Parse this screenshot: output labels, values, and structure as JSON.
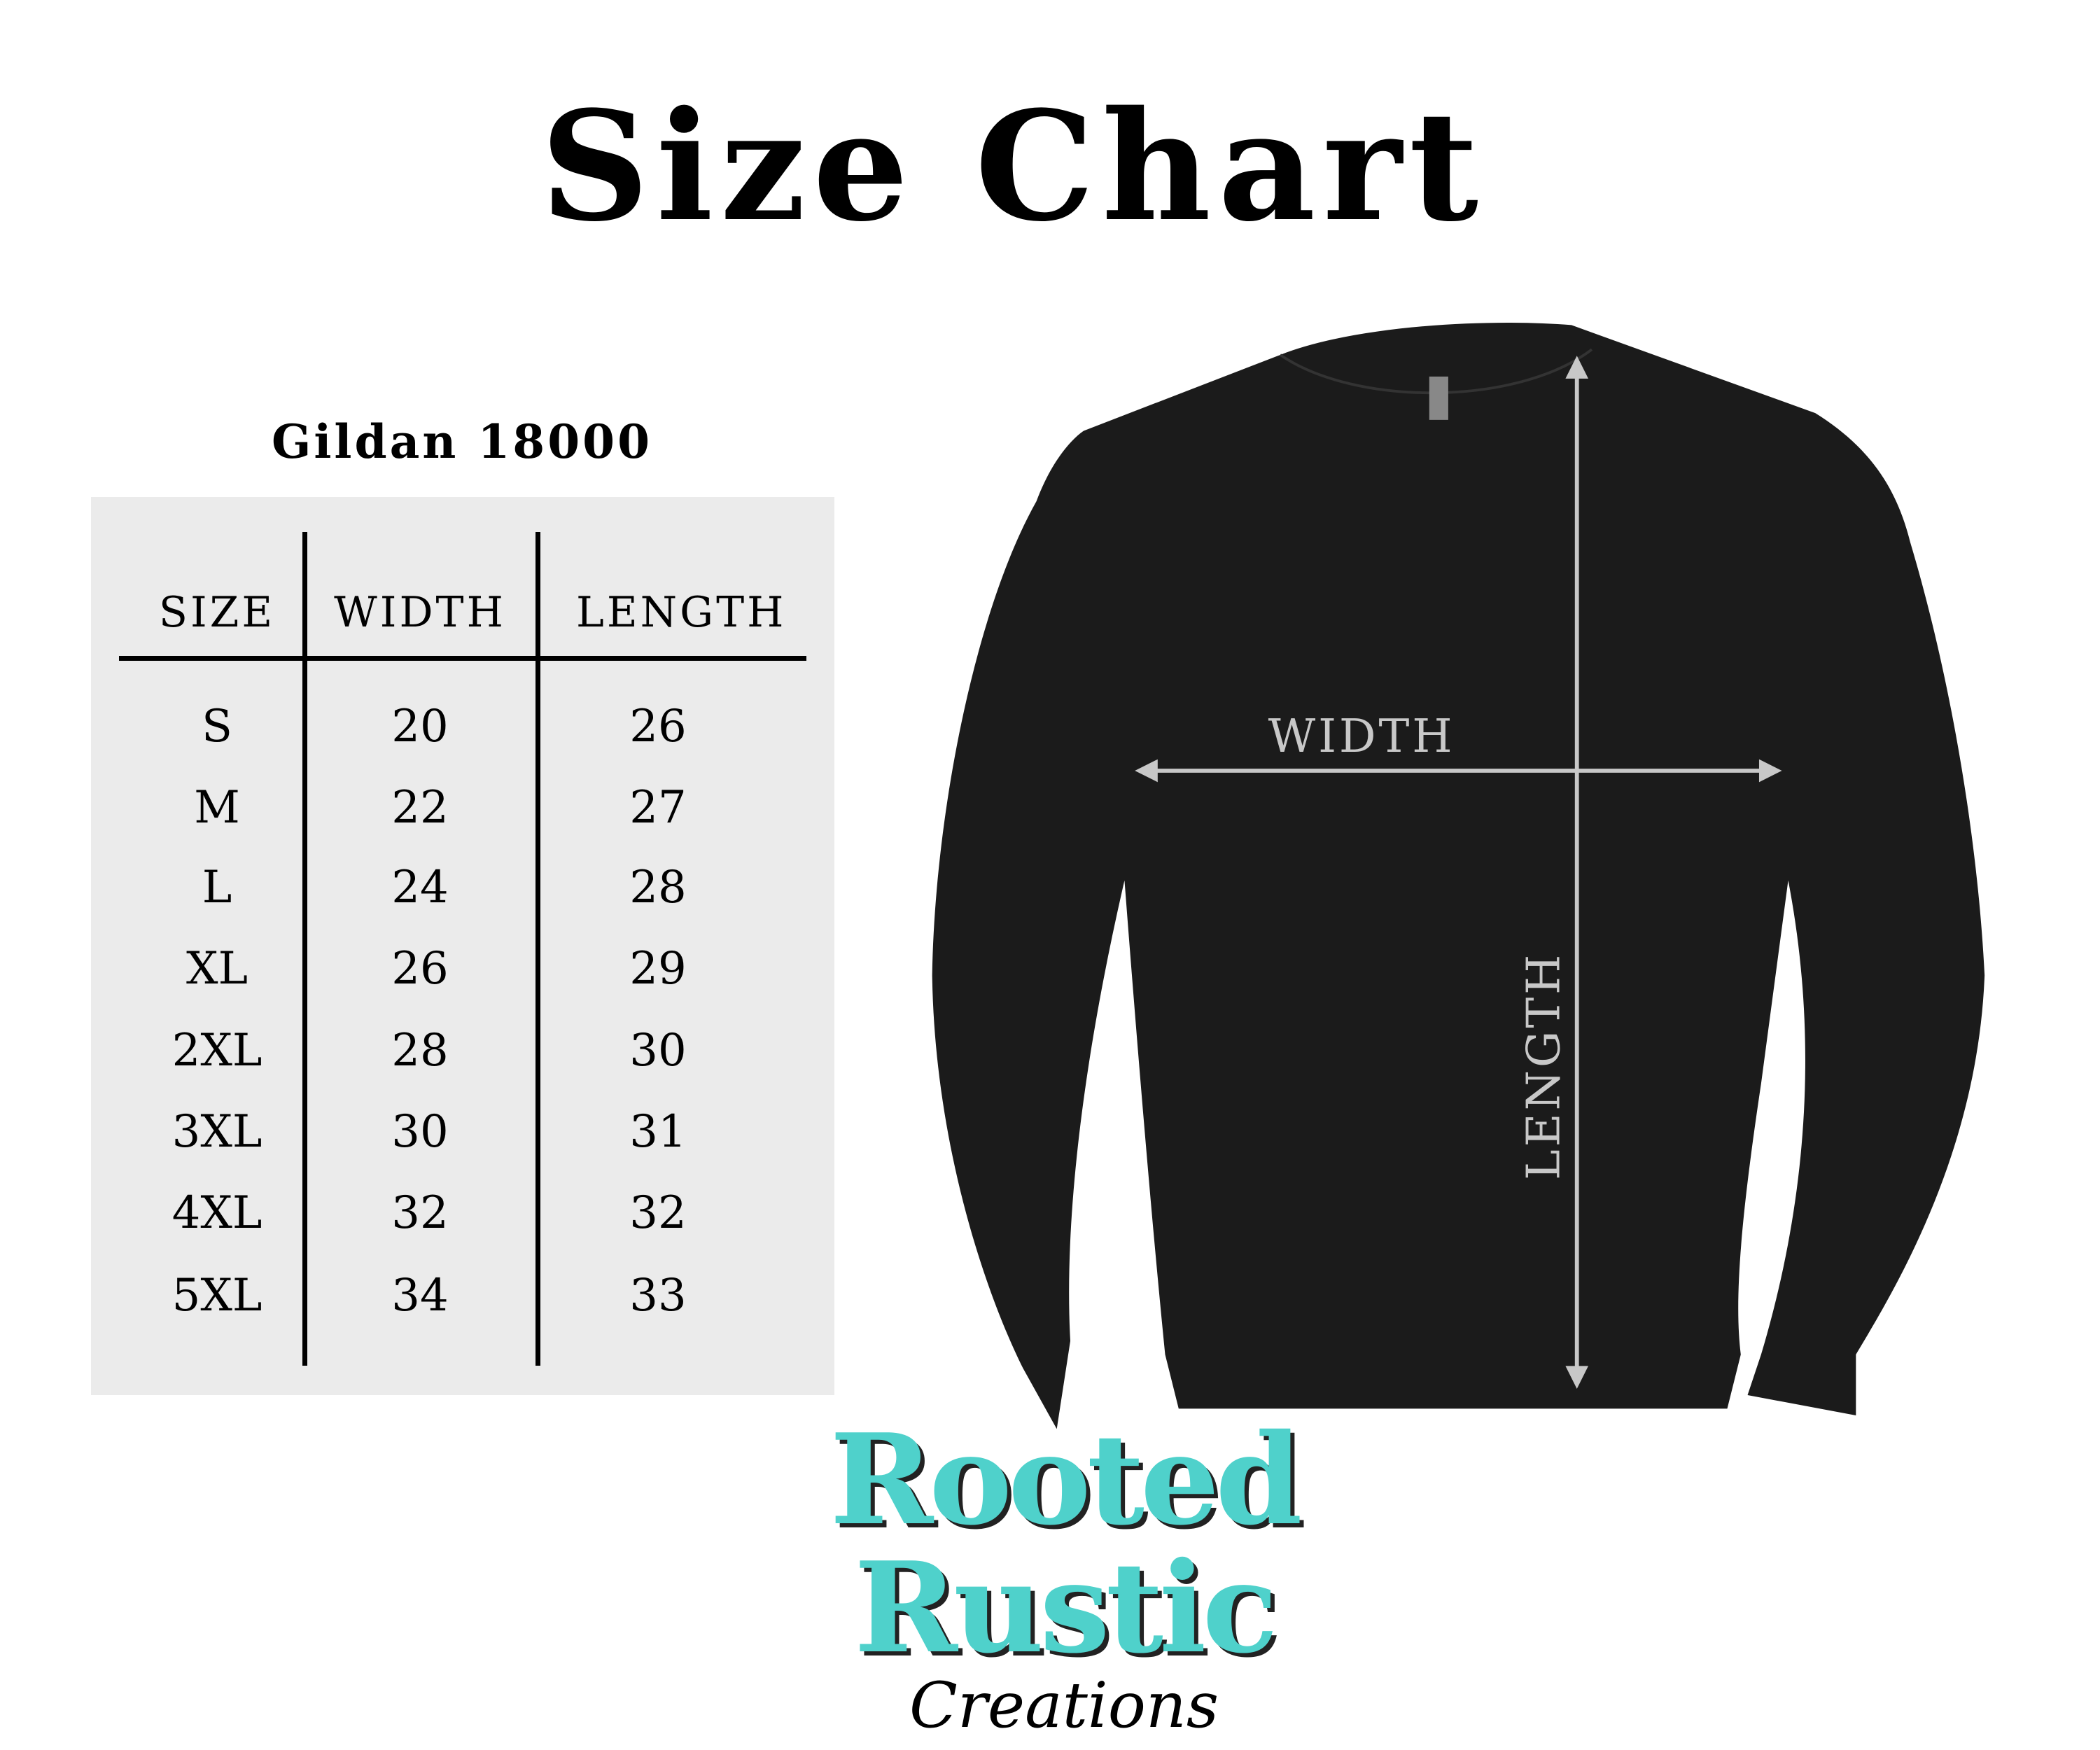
{
  "title": "Size Chart",
  "table": {
    "title": "Gildan 18000",
    "headers": [
      "SIZE",
      "WIDTH",
      "LENGTH"
    ],
    "rows": [
      [
        "S",
        "20",
        "26"
      ],
      [
        "M",
        "22",
        "27"
      ],
      [
        "L",
        "24",
        "28"
      ],
      [
        "XL",
        "26",
        "29"
      ],
      [
        "2XL",
        "28",
        "30"
      ],
      [
        "3XL",
        "30",
        "31"
      ],
      [
        "4XL",
        "32",
        "32"
      ],
      [
        "5XL",
        "34",
        "33"
      ]
    ]
  },
  "diagram": {
    "width_label": "WIDTH",
    "length_label": "LENGTH",
    "garment_color": "#1b1b1b",
    "arrow_color": "#c8c8c8"
  },
  "logo": {
    "line1": "Rooted",
    "line2": "Rustic",
    "line3": "Creations",
    "color": "#4fd1cb"
  }
}
